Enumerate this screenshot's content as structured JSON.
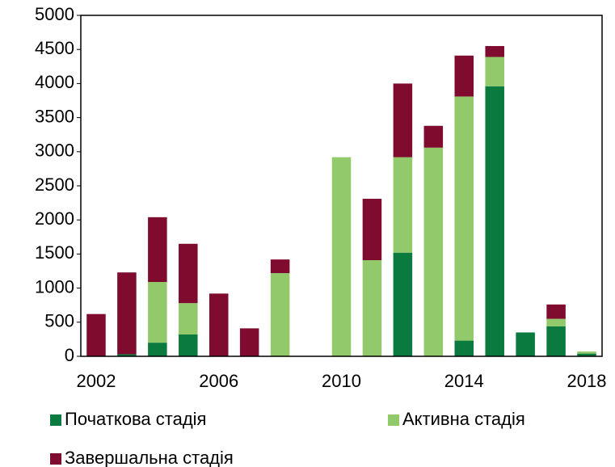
{
  "chart_data": {
    "type": "stacked_bar",
    "categories": [
      "2002",
      null,
      null,
      null,
      "2006",
      null,
      null,
      null,
      "2010",
      null,
      null,
      null,
      "2014",
      null,
      null,
      null,
      "2018"
    ],
    "series": [
      {
        "name": "Початкова стадія",
        "color": "#0b7a3e",
        "values": [
          0,
          30,
          200,
          320,
          0,
          0,
          0,
          0,
          0,
          0,
          1520,
          0,
          230,
          3960,
          350,
          440,
          40
        ]
      },
      {
        "name": "Активна стадія",
        "color": "#92c96a",
        "values": [
          0,
          0,
          890,
          460,
          0,
          0,
          1220,
          0,
          2920,
          1410,
          1400,
          3060,
          3580,
          430,
          0,
          110,
          30
        ]
      },
      {
        "name": "Завершальна стадія",
        "color": "#7f0b2f",
        "values": [
          620,
          1200,
          950,
          870,
          920,
          410,
          200,
          0,
          0,
          900,
          1080,
          320,
          600,
          160,
          0,
          210,
          0
        ]
      }
    ],
    "ylim": [
      0,
      5000
    ],
    "yticks": [
      0,
      500,
      1000,
      1500,
      2000,
      2500,
      3000,
      3500,
      4000,
      4500,
      5000
    ],
    "grid": false,
    "legend": "bottom"
  }
}
